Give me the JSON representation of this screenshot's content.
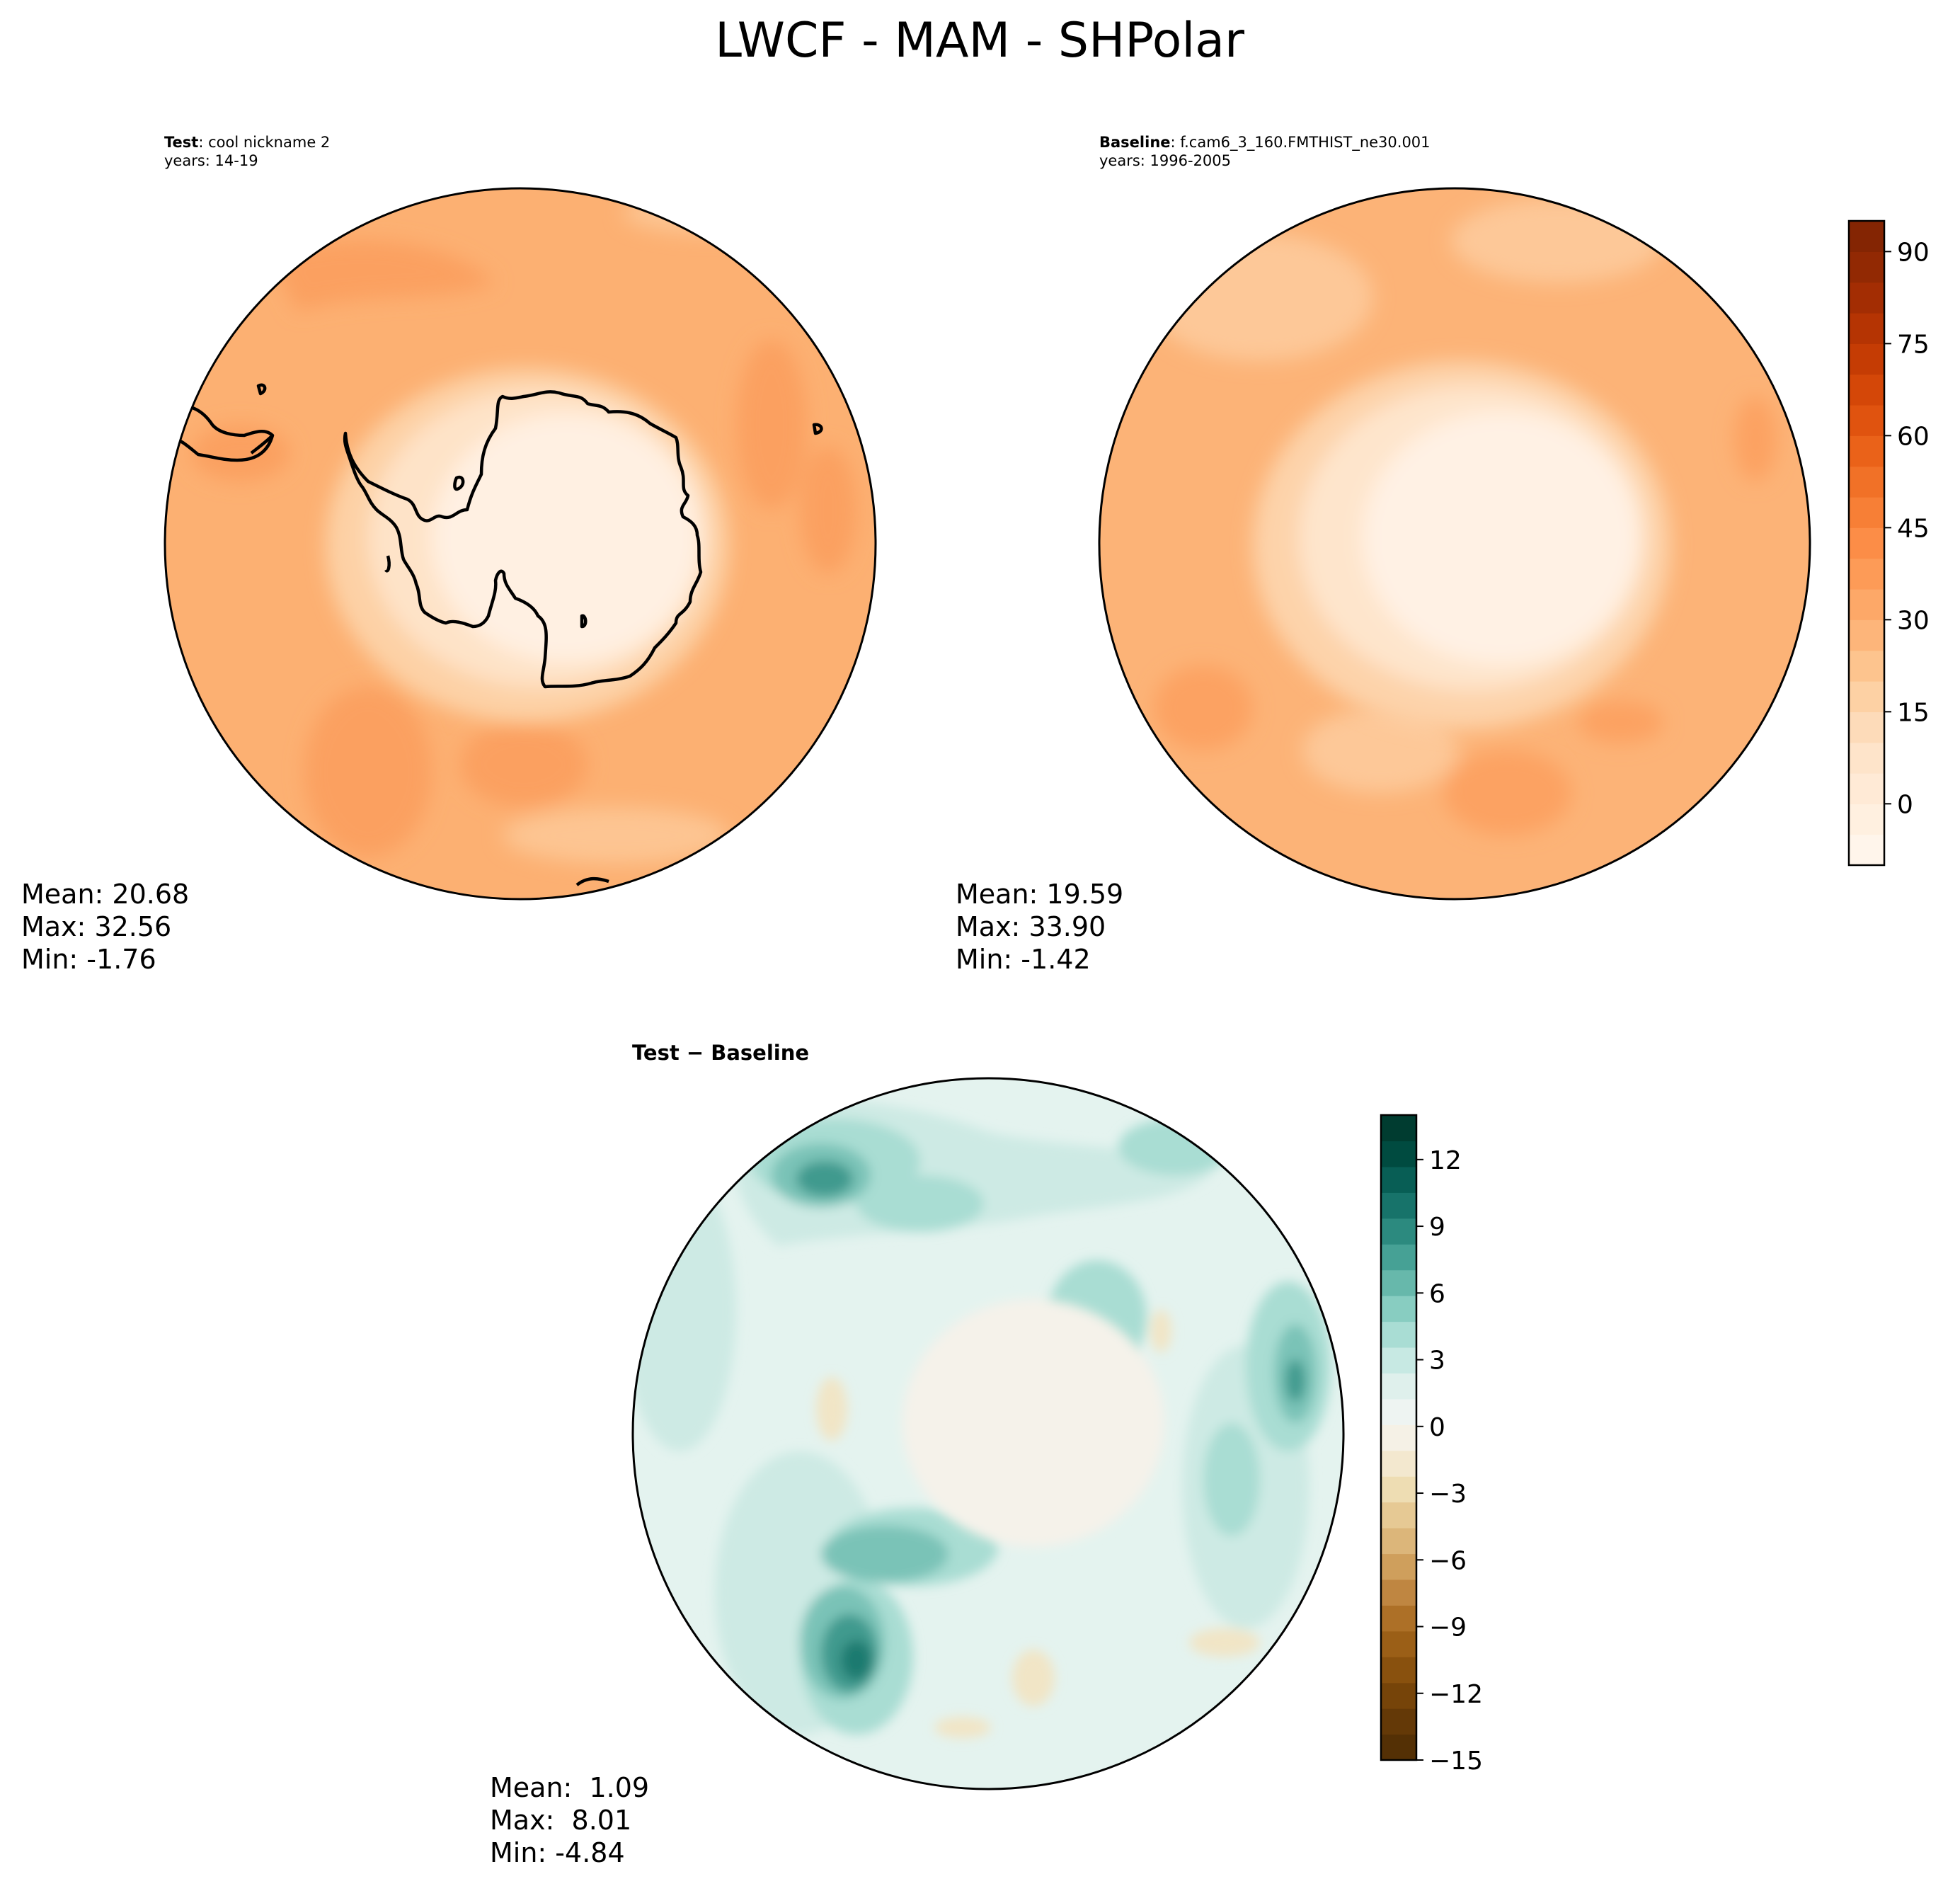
{
  "title": "LWCF - MAM - SHPolar",
  "panels": [
    {
      "id": "test",
      "label_bold": "Test",
      "label_rest": ": cool nickname 2",
      "years": "years: 14-19",
      "stats": {
        "mean": "Mean: 20.68",
        "max": "Max: 32.56",
        "min": "Min: -1.76"
      }
    },
    {
      "id": "baseline",
      "label_bold": "Baseline",
      "label_rest": ": f.cam6_3_160.FMTHIST_ne30.001",
      "years": "years: 1996-2005",
      "stats": {
        "mean": "Mean: 19.59",
        "max": "Max: 33.90",
        "min": "Min: -1.42"
      }
    },
    {
      "id": "diff",
      "label_bold": "Test − Baseline",
      "label_rest": "",
      "years": "",
      "stats": {
        "mean": "Mean:  1.09",
        "max": "Max:  8.01",
        "min": "Min: -4.84"
      }
    }
  ],
  "colorbars": {
    "main": {
      "colormap": "Oranges",
      "range": [
        -10,
        95
      ],
      "tick_labels": [
        "90",
        "75",
        "60",
        "45",
        "30",
        "15",
        "0"
      ],
      "tick_values": [
        90,
        75,
        60,
        45,
        30,
        15,
        0
      ],
      "colors": [
        "#fff5eb",
        "#fff0e0",
        "#ffead6",
        "#fee4ca",
        "#fddbb9",
        "#fdd1a4",
        "#fdc48e",
        "#fdb57a",
        "#fda868",
        "#fd9b57",
        "#fc8d47",
        "#f77f36",
        "#f17127",
        "#ea6219",
        "#e0530f",
        "#d44708",
        "#c53c04",
        "#b53403",
        "#a32d03",
        "#922903",
        "#842503"
      ]
    },
    "diff": {
      "colormap": "BrBG",
      "range": [
        -15,
        14
      ],
      "tick_labels": [
        "12",
        "9",
        "6",
        "3",
        "0",
        "−3",
        "−6",
        "−9",
        "−12",
        "−15"
      ],
      "tick_values": [
        12,
        9,
        6,
        3,
        0,
        -3,
        -6,
        -9,
        -12,
        -15
      ],
      "colors": [
        "#543005",
        "#643907",
        "#764409",
        "#89510e",
        "#9b5f17",
        "#ad7027",
        "#bf8641",
        "#cf9f5c",
        "#dcb67a",
        "#e6c994",
        "#eeddb3",
        "#f3e8cf",
        "#f5f1e6",
        "#eef4f2",
        "#dff0ec",
        "#c7e9e3",
        "#a9ddd4",
        "#88cdc1",
        "#67b8ab",
        "#46a195",
        "#2c8a7f",
        "#17736a",
        "#085e55",
        "#004b40",
        "#003c30"
      ]
    }
  },
  "map_colors": {
    "test_base": "#fcb072",
    "test_light": "#fdc592",
    "test_dark": "#fba061",
    "test_ice": "#fff0e2",
    "test_ring1": "#fee3c8",
    "test_ring2": "#fdd1a6",
    "base_base": "#fcb377",
    "base_light": "#fdc898",
    "base_dark": "#fca262",
    "base_ice": "#fff1e4",
    "base_ring1": "#fee5cc",
    "base_ring2": "#fdd3aa",
    "diff_base": "#e4f3ef",
    "diff_light": "#cdeae4",
    "diff_mid": "#a9ddd3",
    "diff_strong": "#7ac3b7",
    "diff_dark": "#3f9a8e",
    "diff_darkest": "#1f7a70",
    "diff_neg": "#f1e5c6",
    "diff_ice": "#f5f2ea",
    "coast": "#000000"
  }
}
